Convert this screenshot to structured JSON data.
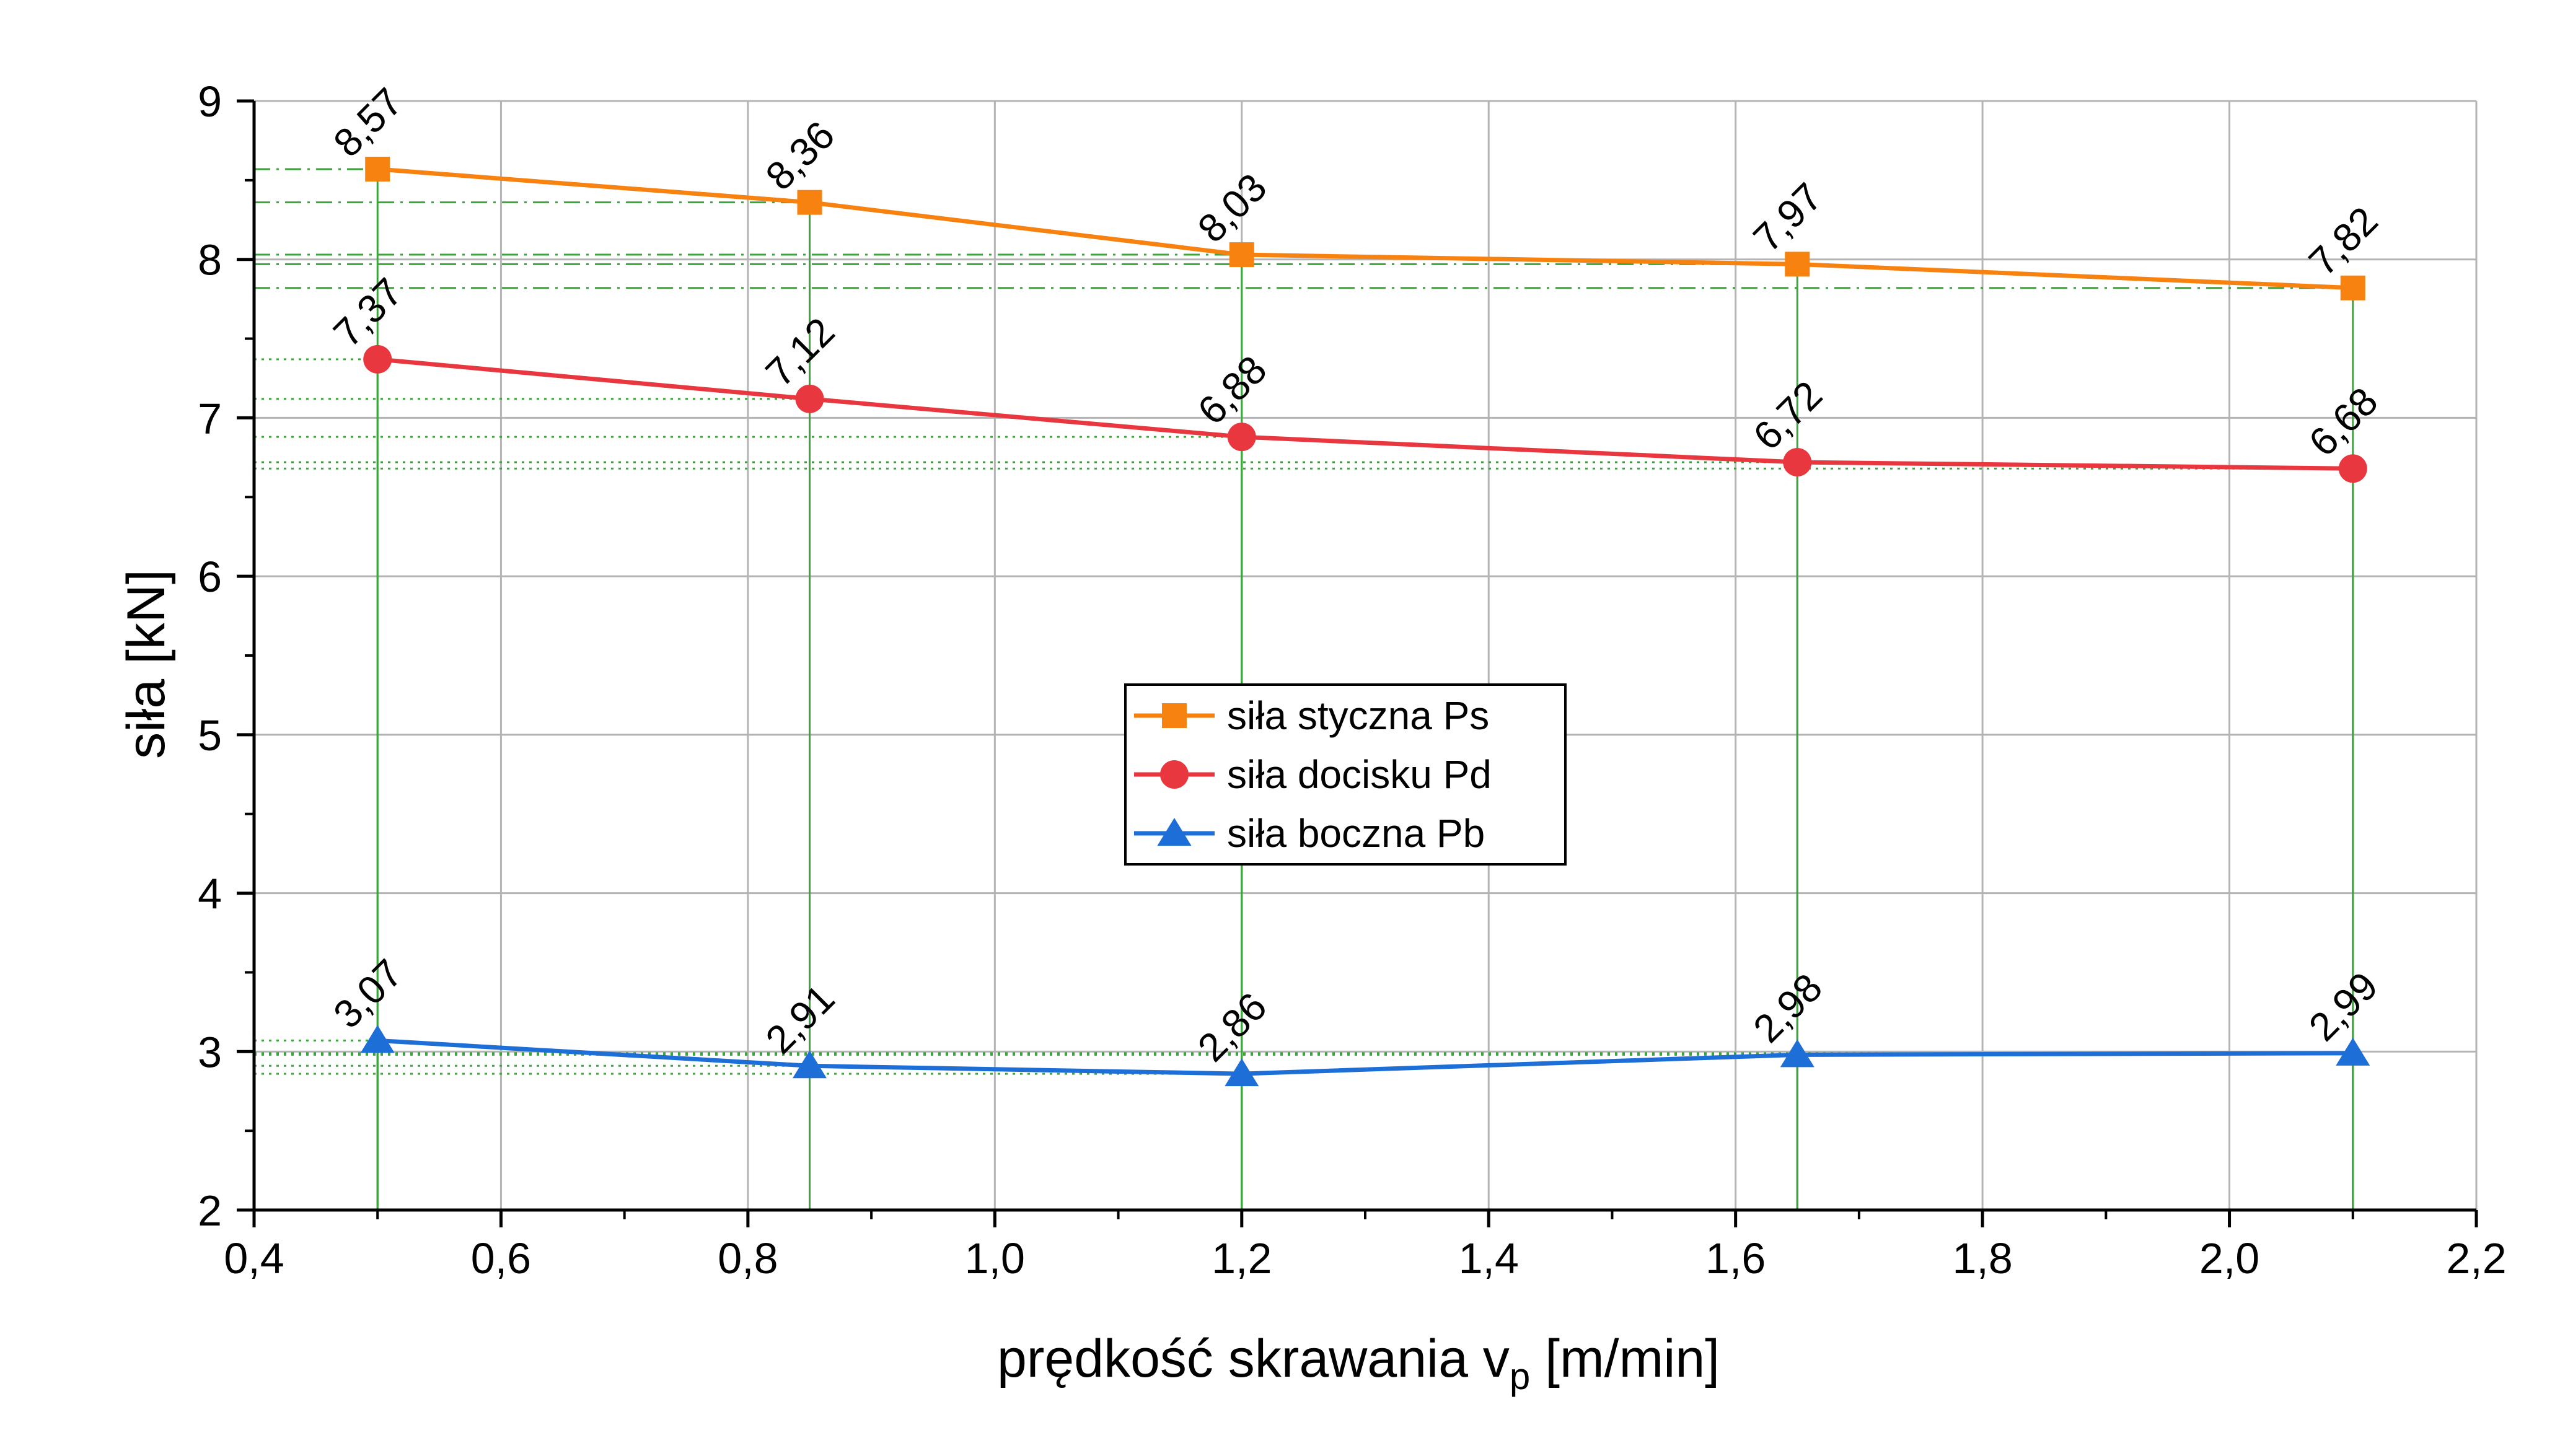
{
  "chart_data": {
    "type": "line",
    "xlabel_main": "prędkość skrawania v",
    "xlabel_sub": "p",
    "xlabel_unit": " [m/min]",
    "ylabel": "siła [kN]",
    "xlim": [
      0.4,
      2.2
    ],
    "ylim": [
      2,
      9
    ],
    "x_ticks": [
      "0,4",
      "0,6",
      "0,8",
      "1,0",
      "1,2",
      "1,4",
      "1,6",
      "1,8",
      "2,0",
      "2,2"
    ],
    "y_ticks": [
      "2",
      "3",
      "4",
      "5",
      "6",
      "7",
      "8",
      "9"
    ],
    "grid": true,
    "legend_position": "center",
    "x": [
      0.5,
      0.85,
      1.2,
      1.65,
      2.1
    ],
    "series": [
      {
        "name": "siła styczna Ps",
        "color": "#F7820F",
        "marker": "square",
        "values": [
          8.57,
          8.36,
          8.03,
          7.97,
          7.82
        ],
        "labels": [
          "8,57",
          "8,36",
          "8,03",
          "7,97",
          "7,82"
        ]
      },
      {
        "name": "siła docisku Pd",
        "color": "#E8373F",
        "marker": "circle",
        "values": [
          7.37,
          7.12,
          6.88,
          6.72,
          6.68
        ],
        "labels": [
          "7,37",
          "7,12",
          "6,88",
          "6,72",
          "6,68"
        ]
      },
      {
        "name": "siła boczna Pb",
        "color": "#1E6ED8",
        "marker": "triangle",
        "values": [
          3.07,
          2.91,
          2.86,
          2.98,
          2.99
        ],
        "labels": [
          "3,07",
          "2,91",
          "2,86",
          "2,98",
          "2,99"
        ]
      }
    ]
  },
  "colors": {
    "grid": "#b4b4b4",
    "drop_lines": "#3aa63a",
    "axis": "#000000"
  }
}
